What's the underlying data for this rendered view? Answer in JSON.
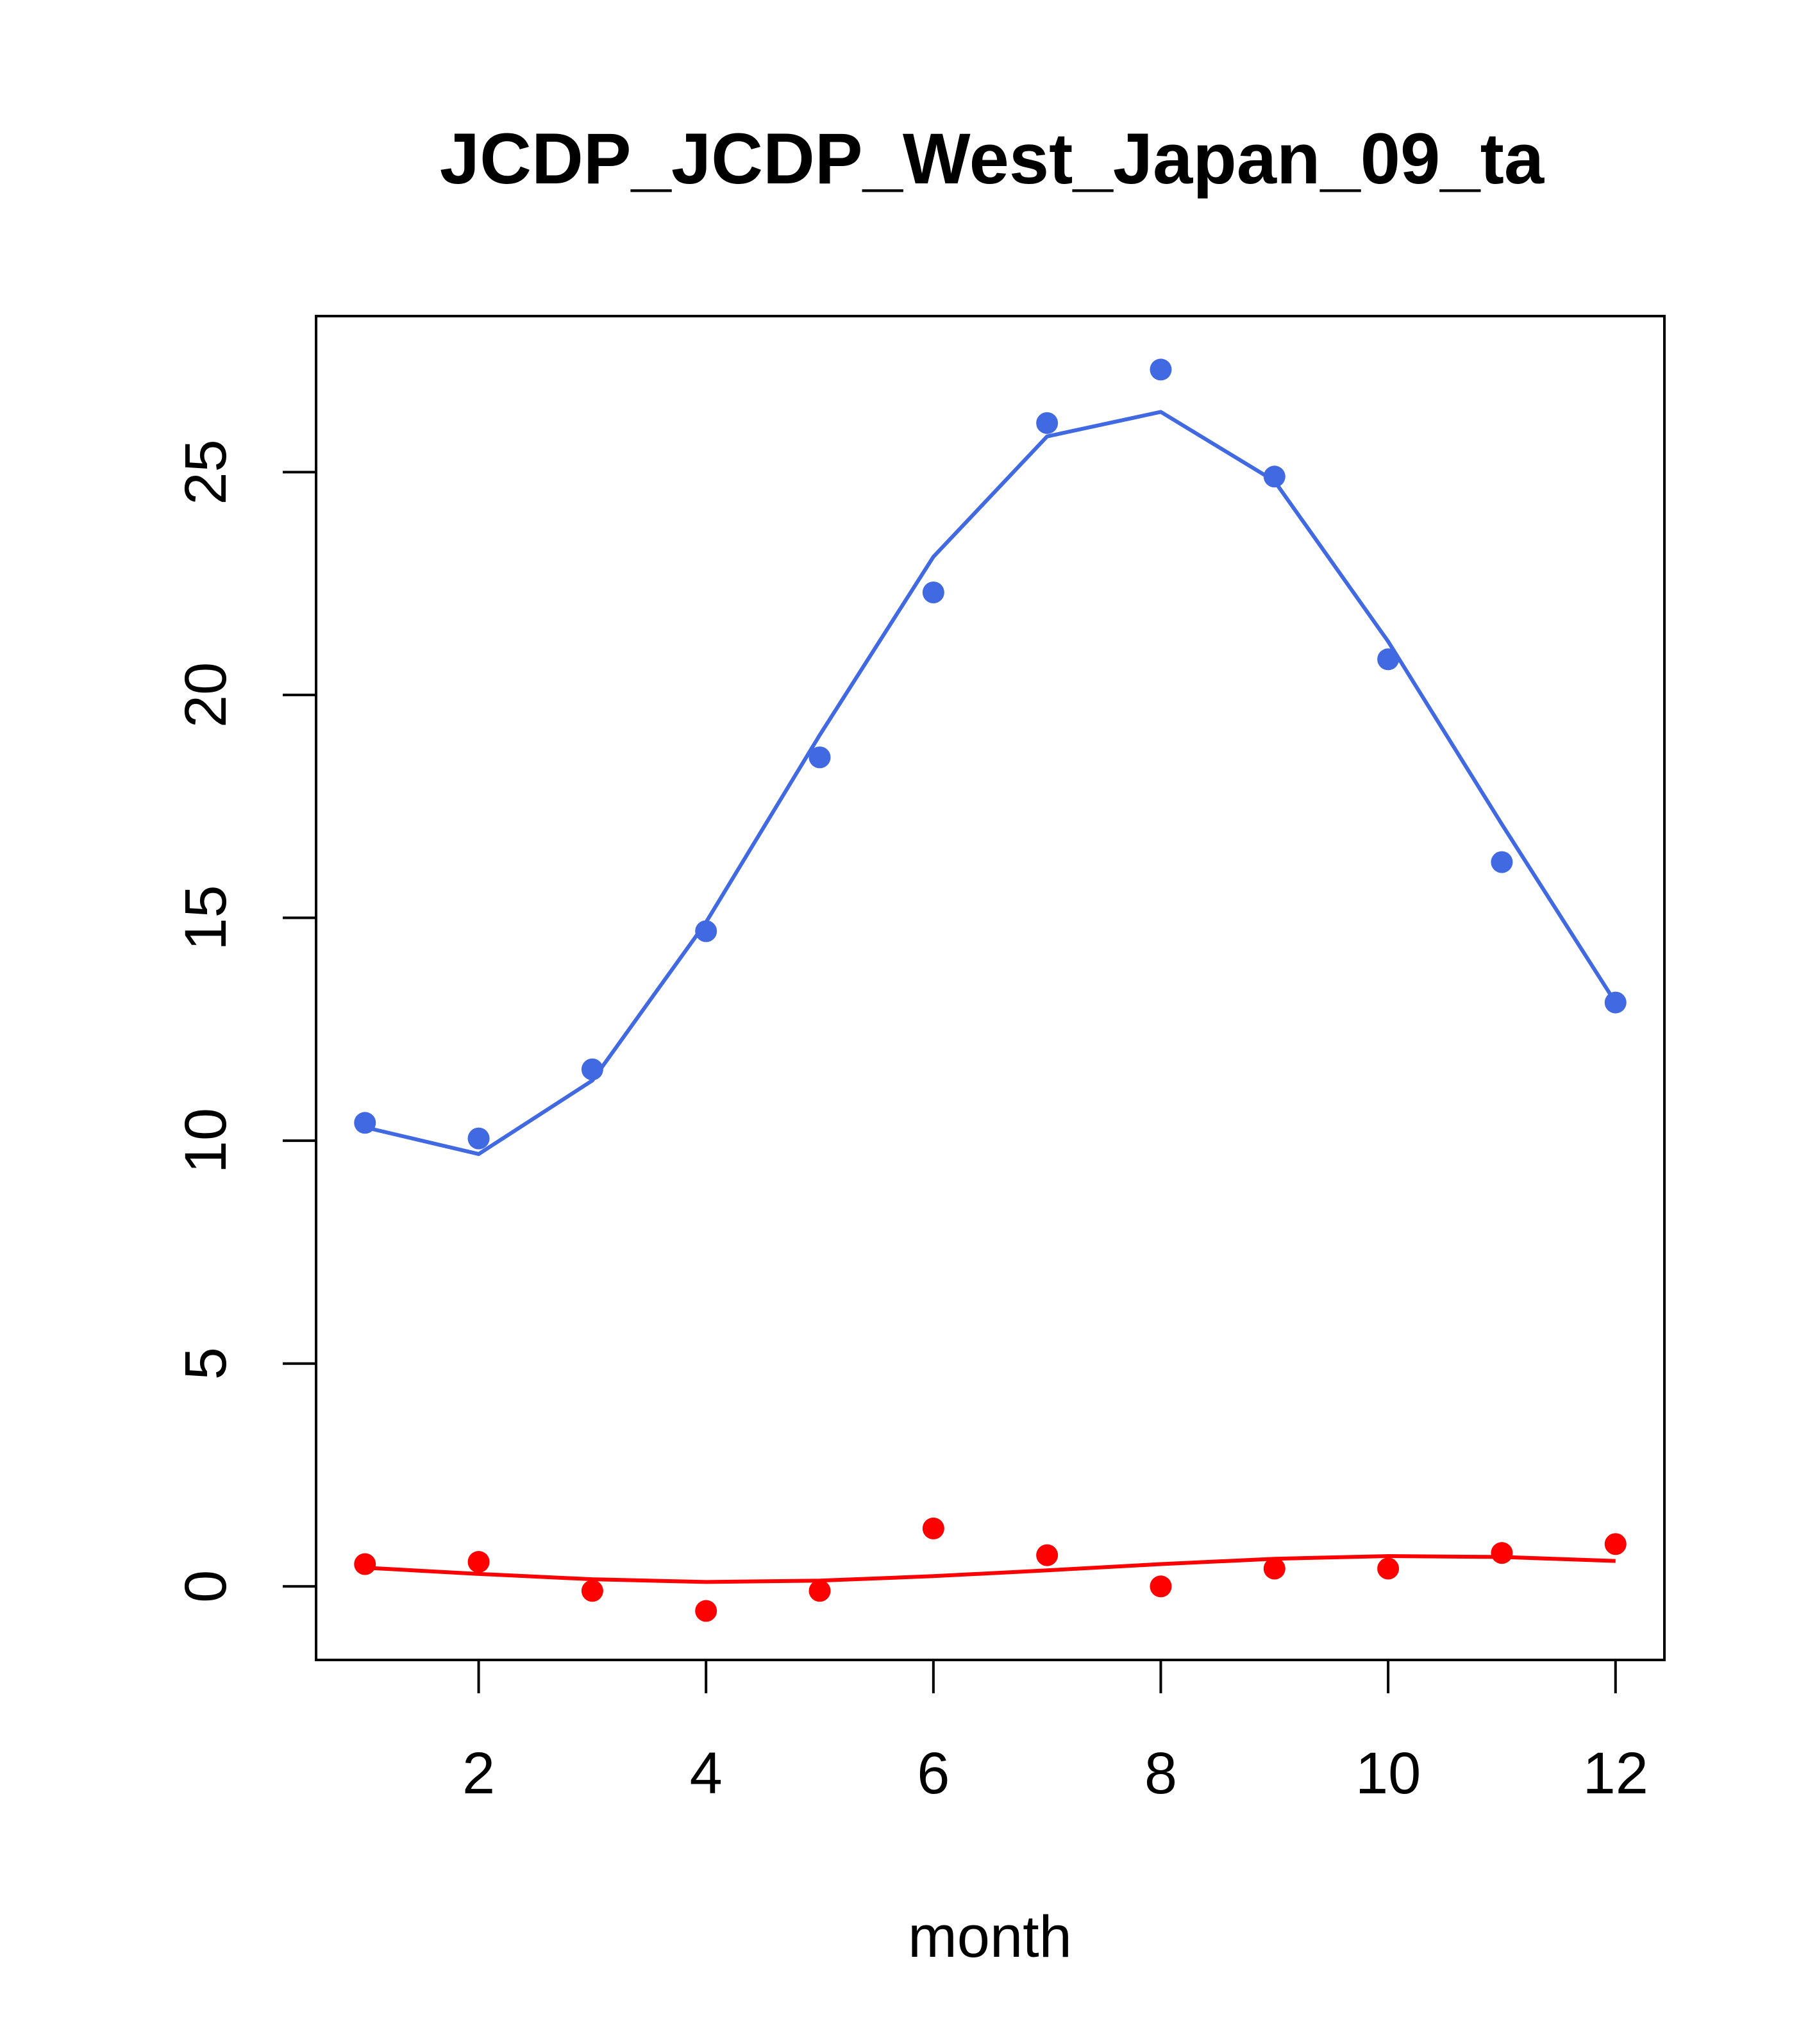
{
  "chart_data": {
    "type": "line",
    "title": "JCDP_JCDP_West_Japan_09_ta",
    "xlabel": "month",
    "ylabel": "",
    "xlim": [
      0.57,
      12.43
    ],
    "ylim": [
      -1.65,
      28.5
    ],
    "xticks": [
      2,
      4,
      6,
      8,
      10,
      12
    ],
    "yticks": [
      0,
      5,
      10,
      15,
      20,
      25
    ],
    "grid": false,
    "legend": "none",
    "series": [
      {
        "color": "#4169E1",
        "points": [
          {
            "x": 1,
            "y": 10.4
          },
          {
            "x": 2,
            "y": 10.05
          },
          {
            "x": 3,
            "y": 11.6
          },
          {
            "x": 4,
            "y": 14.7
          },
          {
            "x": 5,
            "y": 18.6
          },
          {
            "x": 6,
            "y": 22.3
          },
          {
            "x": 7,
            "y": 26.1
          },
          {
            "x": 8,
            "y": 27.3
          },
          {
            "x": 9,
            "y": 24.9
          },
          {
            "x": 10,
            "y": 20.8
          },
          {
            "x": 11,
            "y": 16.25
          },
          {
            "x": 12,
            "y": 13.1
          }
        ],
        "fitted": [
          10.3,
          9.7,
          11.35,
          14.9,
          19.1,
          23.1,
          25.8,
          26.35,
          24.8,
          21.2,
          17.1,
          13.1
        ]
      },
      {
        "color": "#FF0000",
        "points": [
          {
            "x": 1,
            "y": 0.5
          },
          {
            "x": 2,
            "y": 0.55
          },
          {
            "x": 3,
            "y": -0.1
          },
          {
            "x": 4,
            "y": -0.55
          },
          {
            "x": 5,
            "y": -0.1
          },
          {
            "x": 6,
            "y": 1.3
          },
          {
            "x": 7,
            "y": 0.7
          },
          {
            "x": 8,
            "y": 0.0
          },
          {
            "x": 9,
            "y": 0.4
          },
          {
            "x": 10,
            "y": 0.4
          },
          {
            "x": 11,
            "y": 0.75
          },
          {
            "x": 12,
            "y": 0.95
          }
        ],
        "fitted": [
          0.42,
          0.28,
          0.16,
          0.1,
          0.13,
          0.23,
          0.36,
          0.5,
          0.62,
          0.68,
          0.66,
          0.57
        ]
      }
    ]
  }
}
